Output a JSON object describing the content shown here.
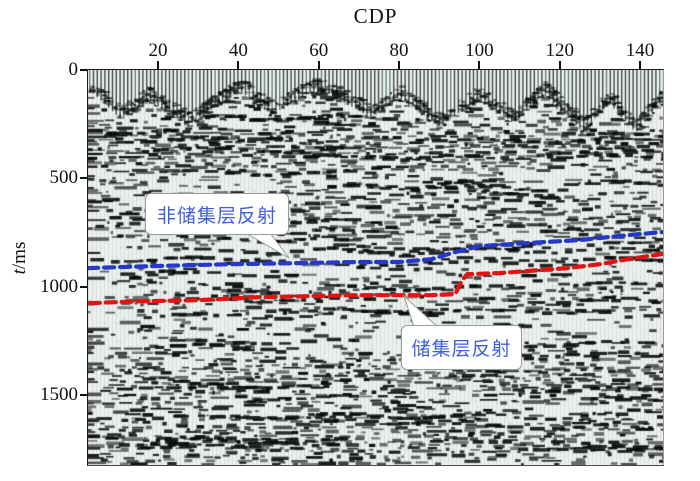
{
  "figure": {
    "title": "CDP",
    "y_axis_title_italic": "t",
    "y_axis_title_rest": "/ms"
  },
  "annotations": {
    "non_reservoir_label": "非储集层反射",
    "reservoir_label": "储集层反射"
  },
  "colors": {
    "non_reservoir_line": "#2438cc",
    "reservoir_line": "#e41310",
    "annotation_text": "#3f5ede",
    "axis_text": "#111111"
  },
  "chart_data": {
    "type": "line",
    "title": "CDP",
    "xlabel": "CDP",
    "ylabel": "t/ms",
    "xlim": [
      2.5,
      146
    ],
    "ylim": [
      0,
      1820
    ],
    "y_inverted": true,
    "x_ticks": [
      20,
      40,
      60,
      80,
      100,
      120,
      140
    ],
    "y_ticks": [
      0,
      500,
      1000,
      1500
    ],
    "grid": false,
    "legend_position": "none",
    "background": "grayscale seismic reflection section (variable-area wiggle noise image with vertical mute stripes at top)",
    "series": [
      {
        "name": "非储集层反射 (non-reservoir reflection horizon)",
        "color": "#2438cc",
        "style": "dashed",
        "points_cdp_tms": [
          [
            2.6,
            914
          ],
          [
            18,
            905
          ],
          [
            38,
            896
          ],
          [
            55,
            891
          ],
          [
            70,
            886
          ],
          [
            80,
            886
          ],
          [
            88,
            873
          ],
          [
            94,
            840
          ],
          [
            100,
            813
          ],
          [
            108,
            803
          ],
          [
            116,
            794
          ],
          [
            125,
            785
          ],
          [
            132,
            771
          ],
          [
            140,
            757
          ],
          [
            145.5,
            748
          ]
        ]
      },
      {
        "name": "储集层反射 (reservoir reflection horizon)",
        "color": "#e41310",
        "style": "dashed",
        "points_cdp_tms": [
          [
            3,
            1076
          ],
          [
            15,
            1067
          ],
          [
            30,
            1062
          ],
          [
            45,
            1048
          ],
          [
            58,
            1043
          ],
          [
            70,
            1039
          ],
          [
            80,
            1039
          ],
          [
            88,
            1039
          ],
          [
            94,
            1034
          ],
          [
            95.7,
            970
          ],
          [
            97,
            942
          ],
          [
            105,
            937
          ],
          [
            115,
            923
          ],
          [
            122,
            914
          ],
          [
            130,
            896
          ],
          [
            137,
            873
          ],
          [
            145.5,
            849
          ]
        ]
      }
    ],
    "callouts": [
      {
        "text": "非储集层反射",
        "tip_cdp": 52.6,
        "tip_t_ms": 868,
        "points_to": "non-reservoir horizon (blue dashed)"
      },
      {
        "text": "储集层反射",
        "tip_cdp": 81.2,
        "tip_t_ms": 1043,
        "points_to": "reservoir horizon (red dashed)"
      }
    ]
  }
}
